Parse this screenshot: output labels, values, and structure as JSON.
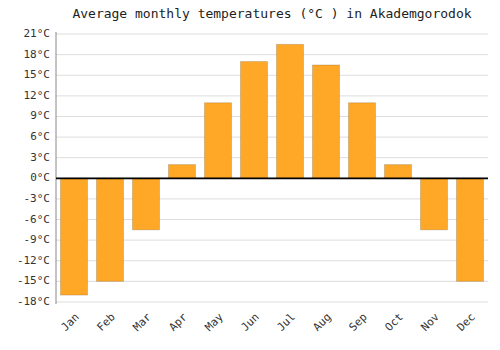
{
  "chart_data": {
    "type": "bar",
    "title": "Average monthly temperatures (°C ) in Akademgorodok",
    "categories": [
      "Jan",
      "Feb",
      "Mar",
      "Apr",
      "May",
      "Jun",
      "Jul",
      "Aug",
      "Sep",
      "Oct",
      "Nov",
      "Dec"
    ],
    "values": [
      -17,
      -15,
      -7.5,
      2,
      11,
      17,
      19.5,
      16.5,
      11,
      2,
      -7.5,
      -15
    ],
    "color": "#FFA726",
    "ylim": [
      -18.3,
      21.3
    ],
    "yticks": [
      {
        "value": -18,
        "label": "-18°C"
      },
      {
        "value": -15,
        "label": "-15°C"
      },
      {
        "value": -12,
        "label": "-12°C"
      },
      {
        "value": -9,
        "label": "-9°C"
      },
      {
        "value": -6,
        "label": "-6°C"
      },
      {
        "value": -3,
        "label": "-3°C"
      },
      {
        "value": 0,
        "label": "0°C"
      },
      {
        "value": 3,
        "label": "3°C"
      },
      {
        "value": 6,
        "label": "6°C"
      },
      {
        "value": 9,
        "label": "9°C"
      },
      {
        "value": 12,
        "label": "12°C"
      },
      {
        "value": 15,
        "label": "15°C"
      },
      {
        "value": 18,
        "label": "18°C"
      },
      {
        "value": 21,
        "label": "21°C"
      }
    ],
    "grid": true
  }
}
